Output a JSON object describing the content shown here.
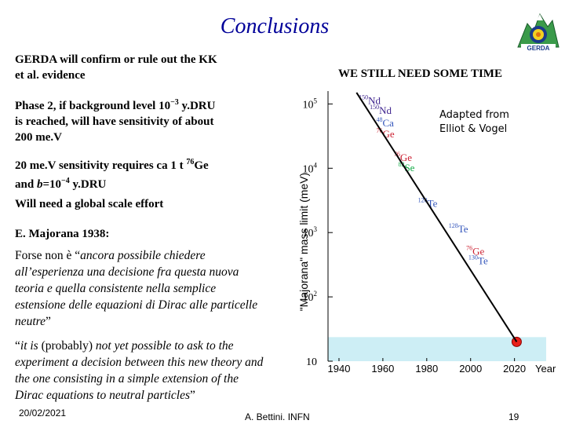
{
  "slide": {
    "title": "Conclusions",
    "logo_text": "GERDA",
    "point1_line1": "GERDA will confirm or rule out the KK",
    "point1_line2": "et al. evidence",
    "right_note": "WE STILL NEED SOME TIME",
    "point2_line1": "Phase 2, if background level 10",
    "point2_exp": "−3",
    "point2_line1b": " y.DRU",
    "point2_line2": "is reached, will have sensitivity of about",
    "point2_line3": "200 me.V",
    "point3_line1": "20 me.V sensitivity requires ca 1 t ",
    "point3_iso": "76",
    "point3_line1b": "Ge",
    "point3_line2a": "and ",
    "point3_b": "b",
    "point3_line2b": "=10",
    "point3_exp": "−4",
    "point3_line2c": " y.DRU",
    "point4": "Will need a global scale effort",
    "point5": "E. Majorana 1938:",
    "quote1_prefix": "Forse non è “",
    "quote1_line1": "ancora possibile chiedere",
    "quote1_line2": "all’esperienza una decisione fra questa nuova",
    "quote1_line3": "teoria e quella consistente nella semplice",
    "quote1_line4": "estensione delle equazioni di Dirac alle particelle",
    "quote1_line5": "neutre",
    "quote1_suffix": "”",
    "quote2_prefix": "“",
    "quote2_it1": "it is",
    "quote2_mid": " (probably) ",
    "quote2_line1": "not yet possible to ask to the",
    "quote2_line2": "experiment a decision between this new theory and",
    "quote2_line3": "the one consisting in a simple extension of the",
    "quote2_line4": "Dirac equations to neutral particles",
    "quote2_suffix": "”",
    "footer_date": "20/02/2021",
    "footer_author": "A. Bettini. INFN",
    "footer_page": "19"
  },
  "colors": {
    "title": "#000099",
    "line": "#000000",
    "band": "#cdeef5",
    "point": "#e8201a",
    "label_purple": "#3a1f8c",
    "label_red": "#cc2233",
    "label_green": "#11aa44",
    "label_blue": "#3355bb"
  },
  "chart_data": {
    "type": "scatter",
    "title": "",
    "annotation": [
      "Adapted from",
      "Elliot & Vogel"
    ],
    "xlabel": "Year",
    "ylabel": "\"Majorana\" mass limit (meV)",
    "x_ticks": [
      1940,
      1960,
      1980,
      2000,
      2020
    ],
    "y_ticks": [
      {
        "value": 10,
        "base": "10",
        "exp": ""
      },
      {
        "value": 100,
        "base": "10",
        "exp": "2"
      },
      {
        "value": 1000,
        "base": "10",
        "exp": "3"
      },
      {
        "value": 10000,
        "base": "10",
        "exp": "4"
      },
      {
        "value": 100000,
        "base": "10",
        "exp": "5"
      }
    ],
    "xlim": [
      1935,
      2028
    ],
    "ylim_log10": [
      1.0,
      5.2
    ],
    "trend_line": [
      {
        "x": 1948,
        "y": 150000
      },
      {
        "x": 2021,
        "y": 20
      }
    ],
    "highlighted_point": {
      "x": 2021,
      "y": 20
    },
    "sensitivity_band": [
      10,
      20
    ],
    "points": [
      {
        "x": 1949,
        "y": 100000,
        "mass": "150",
        "elem": "Nd",
        "color": "label_purple"
      },
      {
        "x": 1954,
        "y": 70000,
        "mass": "150",
        "elem": "Nd",
        "color": "label_purple"
      },
      {
        "x": 1957,
        "y": 45000,
        "mass": "48",
        "elem": "Ca",
        "color": "label_blue"
      },
      {
        "x": 1957,
        "y": 30000,
        "mass": "76",
        "elem": "Ge",
        "color": "label_red"
      },
      {
        "x": 1965,
        "y": 13000,
        "mass": "76",
        "elem": "Ge",
        "color": "label_red"
      },
      {
        "x": 1967,
        "y": 9000,
        "mass": "82",
        "elem": "Se",
        "color": "label_green"
      },
      {
        "x": 1976,
        "y": 2500,
        "mass": "128",
        "elem": "Te",
        "color": "label_blue"
      },
      {
        "x": 1990,
        "y": 1000,
        "mass": "128",
        "elem": "Te",
        "color": "label_blue"
      },
      {
        "x": 1998,
        "y": 450,
        "mass": "76",
        "elem": "Ge",
        "color": "label_red"
      },
      {
        "x": 1999,
        "y": 320,
        "mass": "130",
        "elem": "Te",
        "color": "label_blue"
      }
    ]
  }
}
